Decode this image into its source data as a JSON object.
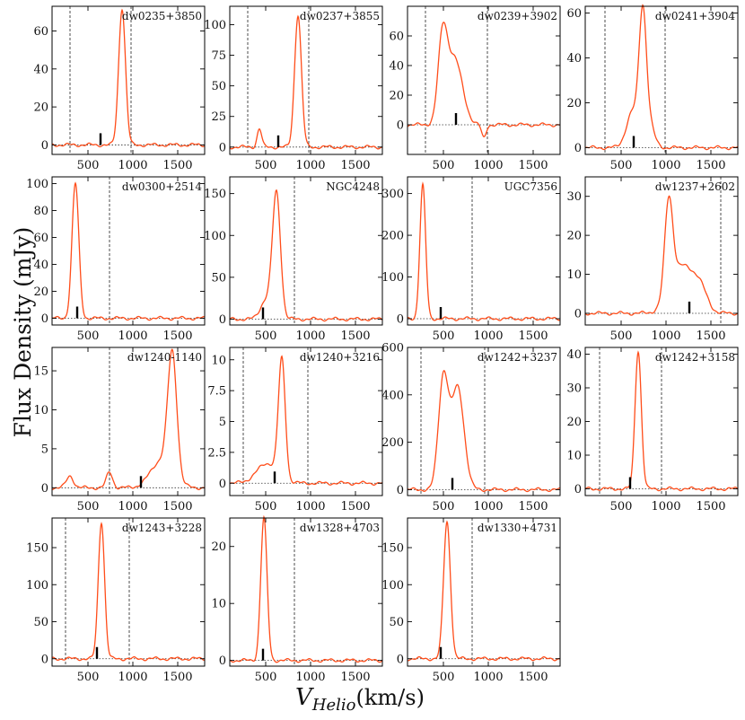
{
  "figure": {
    "ylabel": "Flux Density (mJy)",
    "xlabel_base": "V",
    "xlabel_sub": "Helio",
    "xlabel_unit": "(km/s)"
  },
  "chart_data": [
    {
      "type": "line",
      "title": "dw0235+3850",
      "xlim": [
        100,
        1800
      ],
      "ylim": [
        -5,
        73
      ],
      "xticks": [
        500,
        1000,
        1500
      ],
      "yticks": [
        0,
        20,
        40,
        60
      ],
      "vlines": [
        300,
        980
      ],
      "marker_x": 640,
      "peaks": [
        {
          "c": 880,
          "a": 72,
          "s": 38
        }
      ],
      "dip": null
    },
    {
      "type": "line",
      "title": "dw0237+3855",
      "xlim": [
        100,
        1800
      ],
      "ylim": [
        -6,
        115
      ],
      "xticks": [
        500,
        1000,
        1500
      ],
      "yticks": [
        0,
        25,
        50,
        75,
        100
      ],
      "vlines": [
        300,
        980
      ],
      "marker_x": 640,
      "peaks": [
        {
          "c": 430,
          "a": 15,
          "s": 25
        },
        {
          "c": 860,
          "a": 108,
          "s": 38
        }
      ],
      "dip": null
    },
    {
      "type": "line",
      "title": "dw0239+3902",
      "xlim": [
        100,
        1800
      ],
      "ylim": [
        -20,
        80
      ],
      "xticks": [
        500,
        1000,
        1500
      ],
      "yticks": [
        0,
        20,
        40,
        60
      ],
      "vlines": [
        300,
        990
      ],
      "marker_x": 640,
      "peaks": [
        {
          "c": 490,
          "a": 52,
          "s": 50
        },
        {
          "c": 620,
          "a": 45,
          "s": 90
        }
      ],
      "dip": {
        "c": 950,
        "a": -9,
        "s": 25
      }
    },
    {
      "type": "line",
      "title": "dw0241+3904",
      "xlim": [
        100,
        1800
      ],
      "ylim": [
        -3,
        63
      ],
      "xticks": [
        500,
        1000,
        1500
      ],
      "yticks": [
        0,
        20,
        40,
        60
      ],
      "vlines": [
        320,
        990
      ],
      "marker_x": 640,
      "peaks": [
        {
          "c": 740,
          "a": 52,
          "s": 40
        },
        {
          "c": 630,
          "a": 16,
          "s": 70
        },
        {
          "c": 800,
          "a": 12,
          "s": 60
        }
      ],
      "dip": null
    },
    {
      "type": "line",
      "title": "dw0300+2514",
      "xlim": [
        100,
        1800
      ],
      "ylim": [
        -5,
        105
      ],
      "xticks": [
        500,
        1000,
        1500
      ],
      "yticks": [
        0,
        20,
        40,
        60,
        80,
        100
      ],
      "vlines": [
        740
      ],
      "marker_x": 380,
      "peaks": [
        {
          "c": 360,
          "a": 100,
          "s": 38
        }
      ],
      "dip": null
    },
    {
      "type": "line",
      "title": "NGC4248",
      "xlim": [
        100,
        1800
      ],
      "ylim": [
        -7,
        170
      ],
      "xticks": [
        500,
        1000,
        1500
      ],
      "yticks": [
        0,
        50,
        100,
        150
      ],
      "vlines": [
        820
      ],
      "marker_x": 470,
      "peaks": [
        {
          "c": 620,
          "a": 150,
          "s": 45
        },
        {
          "c": 500,
          "a": 22,
          "s": 60
        }
      ],
      "dip": null
    },
    {
      "type": "line",
      "title": "UGC7356",
      "xlim": [
        100,
        1800
      ],
      "ylim": [
        -15,
        340
      ],
      "xticks": [
        500,
        1000,
        1500
      ],
      "yticks": [
        0,
        100,
        200,
        300
      ],
      "vlines": [
        820
      ],
      "marker_x": 470,
      "peaks": [
        {
          "c": 270,
          "a": 320,
          "s": 32
        }
      ],
      "dip": null
    },
    {
      "type": "line",
      "title": "dw1237+2602",
      "xlim": [
        100,
        1800
      ],
      "ylim": [
        -3,
        35
      ],
      "xticks": [
        500,
        1000,
        1500
      ],
      "yticks": [
        0,
        10,
        20,
        30
      ],
      "vlines": [
        1610
      ],
      "marker_x": 1260,
      "peaks": [
        {
          "c": 1030,
          "a": 24,
          "s": 45
        },
        {
          "c": 1180,
          "a": 12,
          "s": 130
        },
        {
          "c": 1380,
          "a": 5,
          "s": 80
        }
      ],
      "dip": null
    },
    {
      "type": "line",
      "title": "dw1240-1140",
      "xlim": [
        100,
        1800
      ],
      "ylim": [
        -1,
        18
      ],
      "xticks": [
        500,
        1000,
        1500
      ],
      "yticks": [
        0,
        5,
        10,
        15
      ],
      "vlines": [
        740
      ],
      "marker_x": 1090,
      "peaks": [
        {
          "c": 1440,
          "a": 15.5,
          "s": 50
        },
        {
          "c": 1320,
          "a": 3.5,
          "s": 120
        },
        {
          "c": 300,
          "a": 1.5,
          "s": 40
        },
        {
          "c": 740,
          "a": 2,
          "s": 35
        }
      ],
      "dip": null
    },
    {
      "type": "line",
      "title": "dw1240+3216",
      "xlim": [
        100,
        1800
      ],
      "ylim": [
        -1,
        11
      ],
      "xticks": [
        500,
        1000,
        1500
      ],
      "yticks": [
        0.0,
        2.5,
        5.0,
        7.5,
        10.0
      ],
      "vlines": [
        250,
        970
      ],
      "marker_x": 600,
      "peaks": [
        {
          "c": 680,
          "a": 9.5,
          "s": 38
        },
        {
          "c": 520,
          "a": 1.6,
          "s": 120
        }
      ],
      "dip": null
    },
    {
      "type": "line",
      "title": "dw1242+3237",
      "xlim": [
        100,
        1800
      ],
      "ylim": [
        -25,
        600
      ],
      "xticks": [
        500,
        1000,
        1500
      ],
      "yticks": [
        0,
        200,
        400,
        600
      ],
      "vlines": [
        250,
        960
      ],
      "marker_x": 600,
      "peaks": [
        {
          "c": 500,
          "a": 470,
          "s": 55
        },
        {
          "c": 660,
          "a": 430,
          "s": 70
        }
      ],
      "dip": null
    },
    {
      "type": "line",
      "title": "dw1242+3158",
      "xlim": [
        100,
        1800
      ],
      "ylim": [
        -2,
        42
      ],
      "xticks": [
        500,
        1000,
        1500
      ],
      "yticks": [
        0,
        10,
        20,
        30,
        40
      ],
      "vlines": [
        260,
        950
      ],
      "marker_x": 600,
      "peaks": [
        {
          "c": 690,
          "a": 41,
          "s": 35
        }
      ],
      "dip": null
    },
    {
      "type": "line",
      "title": "dw1243+3228",
      "xlim": [
        100,
        1800
      ],
      "ylim": [
        -10,
        190
      ],
      "xticks": [
        500,
        1000,
        1500
      ],
      "yticks": [
        0,
        50,
        100,
        150
      ],
      "vlines": [
        250,
        960
      ],
      "marker_x": 600,
      "peaks": [
        {
          "c": 650,
          "a": 185,
          "s": 35
        }
      ],
      "dip": null
    },
    {
      "type": "line",
      "title": "dw1328+4703",
      "xlim": [
        100,
        1800
      ],
      "ylim": [
        -1,
        25
      ],
      "xticks": [
        500,
        1000,
        1500
      ],
      "yticks": [
        0,
        10,
        20
      ],
      "vlines": [
        820
      ],
      "marker_x": 470,
      "peaks": [
        {
          "c": 480,
          "a": 25,
          "s": 35
        }
      ],
      "dip": null
    },
    {
      "type": "line",
      "title": "dw1330+4731",
      "xlim": [
        100,
        1800
      ],
      "ylim": [
        -10,
        190
      ],
      "xticks": [
        500,
        1000,
        1500
      ],
      "yticks": [
        0,
        50,
        100,
        150
      ],
      "vlines": [
        820
      ],
      "marker_x": 470,
      "peaks": [
        {
          "c": 540,
          "a": 185,
          "s": 38
        }
      ],
      "dip": null
    }
  ]
}
